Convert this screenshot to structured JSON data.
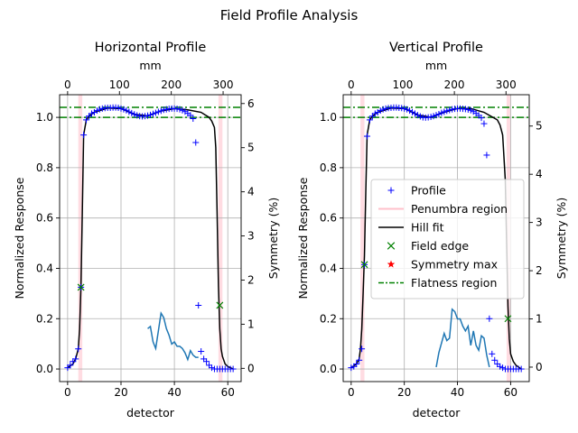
{
  "figure": {
    "suptitle": "Field Profile Analysis"
  },
  "chart_data": [
    {
      "type": "line",
      "title": "Horizontal Profile",
      "xlabel": "detector",
      "ylabel": "Normalized Response",
      "x2label": "mm",
      "y2label": "Symmetry (%)",
      "xlim": [
        -3,
        65
      ],
      "ylim": [
        -0.05,
        1.09
      ],
      "x_ticks": [
        0,
        20,
        40,
        60
      ],
      "y_ticks": [
        0.0,
        0.2,
        0.4,
        0.6,
        0.8,
        1.0
      ],
      "x2lim": [
        -15.45,
        334.75
      ],
      "x2_ticks": [
        0,
        100,
        200,
        300
      ],
      "y2lim": [
        -0.3,
        6.2
      ],
      "y2_ticks": [
        0,
        1,
        2,
        3,
        4,
        5,
        6
      ],
      "grid": true,
      "flatness_lines": [
        1.0,
        1.04
      ],
      "penumbra_regions": [
        [
          4.0,
          5.5
        ],
        [
          56.5,
          58.0
        ]
      ],
      "series": [
        {
          "name": "Profile",
          "x": [
            0,
            1,
            2,
            3,
            4,
            5,
            6,
            7,
            8,
            9,
            10,
            11,
            12,
            13,
            14,
            15,
            16,
            17,
            18,
            19,
            20,
            21,
            22,
            23,
            24,
            25,
            26,
            27,
            28,
            29,
            30,
            31,
            32,
            33,
            34,
            35,
            36,
            37,
            38,
            39,
            40,
            41,
            42,
            43,
            44,
            45,
            46,
            47,
            48,
            49,
            50,
            51,
            52,
            53,
            54,
            55,
            56,
            57,
            58,
            59,
            60,
            61,
            62
          ],
          "y": [
            0.005,
            0.015,
            0.03,
            0.04,
            0.08,
            0.325,
            0.93,
            0.99,
            1.005,
            1.015,
            1.02,
            1.027,
            1.032,
            1.035,
            1.037,
            1.038,
            1.038,
            1.039,
            1.039,
            1.038,
            1.035,
            1.032,
            1.028,
            1.022,
            1.017,
            1.012,
            1.008,
            1.005,
            1.004,
            1.005,
            1.007,
            1.01,
            1.014,
            1.018,
            1.022,
            1.026,
            1.03,
            1.032,
            1.034,
            1.035,
            1.035,
            1.034,
            1.032,
            1.028,
            1.023,
            1.016,
            1.008,
            0.995,
            0.9,
            0.253,
            0.07,
            0.04,
            0.03,
            0.015,
            0.005,
            0.0,
            0.0,
            0.0,
            0.0,
            0.0,
            0.0,
            0.0,
            0.0
          ]
        },
        {
          "name": "Hill fit",
          "x": [
            0,
            2,
            3,
            4,
            4.5,
            5,
            5.5,
            6,
            7,
            8,
            10,
            15,
            20,
            25,
            30,
            35,
            40,
            45,
            50,
            53,
            54,
            55,
            55.5,
            56,
            56.5,
            57,
            57.5,
            58,
            59,
            60,
            62
          ],
          "y": [
            0.005,
            0.02,
            0.04,
            0.08,
            0.16,
            0.33,
            0.62,
            0.93,
            0.99,
            1.005,
            1.02,
            1.037,
            1.035,
            1.012,
            1.006,
            1.025,
            1.035,
            1.03,
            1.02,
            1.0,
            0.985,
            0.96,
            0.88,
            0.62,
            0.33,
            0.16,
            0.08,
            0.05,
            0.02,
            0.01,
            0.0
          ]
        },
        {
          "name": "Field edge",
          "x": [
            5,
            57
          ],
          "y": [
            0.325,
            0.253
          ]
        },
        {
          "name": "Symmetry",
          "x": [
            30,
            31,
            32,
            33,
            34,
            35,
            36,
            37,
            38,
            39,
            40,
            41,
            42,
            43,
            44,
            45,
            46,
            47,
            48,
            49
          ],
          "y2": [
            0.9,
            0.95,
            0.6,
            0.45,
            0.85,
            1.25,
            1.15,
            0.9,
            0.75,
            0.55,
            0.6,
            0.5,
            0.5,
            0.45,
            0.35,
            0.2,
            0.4,
            0.3,
            0.25,
            0.25
          ]
        }
      ]
    },
    {
      "type": "line",
      "title": "Vertical Profile",
      "xlabel": "detector",
      "ylabel": "Normalized Response",
      "x2label": "mm",
      "y2label": "Symmetry (%)",
      "xlim": [
        -3,
        67
      ],
      "ylim": [
        -0.05,
        1.09
      ],
      "x_ticks": [
        0,
        20,
        40,
        60
      ],
      "y_ticks": [
        0.0,
        0.2,
        0.4,
        0.6,
        0.8,
        1.0
      ],
      "x2lim": [
        -15.45,
        345.05
      ],
      "x2_ticks": [
        0,
        100,
        200,
        300
      ],
      "y2lim": [
        -0.3,
        5.65
      ],
      "y2_ticks": [
        0,
        1,
        2,
        3,
        4,
        5
      ],
      "grid": true,
      "flatness_lines": [
        1.0,
        1.04
      ],
      "penumbra_regions": [
        [
          3.5,
          5.0
        ],
        [
          58.5,
          60.0
        ]
      ],
      "legend": {
        "position": "center-right",
        "entries": [
          "Profile",
          "Penumbra region",
          "Hill fit",
          "Field edge",
          "Symmetry max",
          "Flatness region"
        ]
      },
      "series": [
        {
          "name": "Profile",
          "x": [
            0,
            1,
            2,
            3,
            4,
            5,
            6,
            7,
            8,
            9,
            10,
            11,
            12,
            13,
            14,
            15,
            16,
            17,
            18,
            19,
            20,
            21,
            22,
            23,
            24,
            25,
            26,
            27,
            28,
            29,
            30,
            31,
            32,
            33,
            34,
            35,
            36,
            37,
            38,
            39,
            40,
            41,
            42,
            43,
            44,
            45,
            46,
            47,
            48,
            49,
            50,
            51,
            52,
            53,
            54,
            55,
            56,
            57,
            58,
            59,
            60,
            61,
            62,
            63,
            64
          ],
          "y": [
            0.005,
            0.01,
            0.02,
            0.035,
            0.08,
            0.415,
            0.925,
            0.99,
            1.005,
            1.015,
            1.02,
            1.027,
            1.032,
            1.035,
            1.037,
            1.038,
            1.039,
            1.039,
            1.038,
            1.037,
            1.035,
            1.032,
            1.027,
            1.021,
            1.015,
            1.009,
            1.004,
            1.0,
            0.999,
            1.0,
            1.002,
            1.005,
            1.009,
            1.013,
            1.018,
            1.022,
            1.026,
            1.029,
            1.032,
            1.034,
            1.035,
            1.035,
            1.034,
            1.033,
            1.031,
            1.028,
            1.023,
            1.016,
            1.008,
            0.998,
            0.975,
            0.85,
            0.2,
            0.06,
            0.035,
            0.02,
            0.01,
            0.005,
            0.0,
            0.0,
            0.0,
            0.0,
            0.0,
            0.0,
            0.0
          ]
        },
        {
          "name": "Hill fit",
          "x": [
            0,
            2,
            3,
            3.5,
            4,
            4.5,
            5,
            5.5,
            6,
            7,
            8,
            10,
            15,
            20,
            25,
            30,
            35,
            40,
            45,
            50,
            55,
            56,
            57,
            58,
            58.5,
            59,
            59.5,
            60,
            61,
            62,
            64
          ],
          "y": [
            0.005,
            0.02,
            0.04,
            0.08,
            0.16,
            0.3,
            0.45,
            0.7,
            0.93,
            0.99,
            1.005,
            1.02,
            1.037,
            1.035,
            1.01,
            1.0,
            1.02,
            1.035,
            1.035,
            1.02,
            0.99,
            0.97,
            0.93,
            0.75,
            0.5,
            0.25,
            0.12,
            0.06,
            0.03,
            0.015,
            0.0
          ]
        },
        {
          "name": "Field edge",
          "x": [
            5,
            59
          ],
          "y": [
            0.415,
            0.2
          ]
        },
        {
          "name": "Symmetry",
          "x": [
            32,
            33,
            34,
            35,
            36,
            37,
            38,
            39,
            40,
            41,
            42,
            43,
            44,
            45,
            46,
            47,
            48,
            49,
            50,
            51,
            52
          ],
          "y2": [
            0.0,
            0.3,
            0.5,
            0.7,
            0.55,
            0.6,
            1.2,
            1.15,
            1.0,
            1.0,
            0.85,
            0.75,
            0.85,
            0.45,
            0.75,
            0.45,
            0.35,
            0.65,
            0.6,
            0.25,
            0.0
          ]
        }
      ]
    }
  ]
}
